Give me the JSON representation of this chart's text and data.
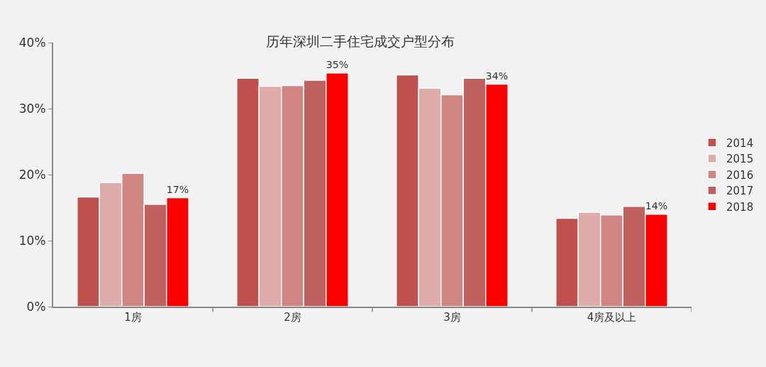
{
  "chart_data": {
    "type": "bar",
    "title": "历年深圳二手住宅成交户型分布",
    "categories": [
      "1房",
      "2房",
      "3房",
      "4房及以上"
    ],
    "series": [
      {
        "name": "2014",
        "color": "#c0504d",
        "values": [
          16.6,
          34.6,
          35.1,
          13.4
        ]
      },
      {
        "name": "2015",
        "color": "#dfabab",
        "values": [
          18.8,
          33.4,
          33.1,
          14.3
        ]
      },
      {
        "name": "2016",
        "color": "#d08784",
        "values": [
          20.2,
          33.5,
          32.1,
          13.9
        ]
      },
      {
        "name": "2017",
        "color": "#c0605f",
        "values": [
          15.5,
          34.3,
          34.6,
          15.2
        ]
      },
      {
        "name": "2018",
        "color": "#ff0000",
        "values": [
          16.5,
          35.4,
          33.7,
          14.0
        ],
        "value_labels": [
          "17%",
          "35%",
          "34%",
          "14%"
        ]
      }
    ],
    "ylim": [
      0,
      40
    ],
    "yticks": [
      {
        "value": 0,
        "label": "0%"
      },
      {
        "value": 10,
        "label": "10%"
      },
      {
        "value": 20,
        "label": "20%"
      },
      {
        "value": 30,
        "label": "30%"
      },
      {
        "value": 40,
        "label": "40%"
      }
    ],
    "grid": false,
    "legend": "right"
  }
}
